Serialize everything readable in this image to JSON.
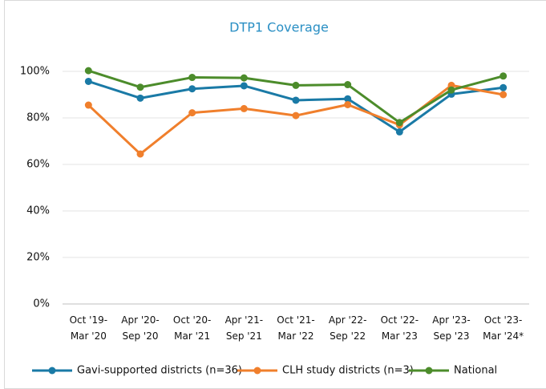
{
  "chart_data": {
    "type": "line",
    "title": "DTP1 Coverage",
    "categories": [
      "Oct '19-\nMar '20",
      "Apr '20-\nSep '20",
      "Oct '20-\nMar '21",
      "Apr '21-\nSep '21",
      "Oct '21-\nMar '22",
      "Apr '22-\nSep '22",
      "Oct '22-\nMar '23",
      "Apr '23-\nSep '23",
      "Oct '23-\nMar '24*"
    ],
    "series": [
      {
        "name": "Gavi-supported districts (n=36)",
        "color": "#1a7aa6",
        "values": [
          95.7,
          88.5,
          92.5,
          93.8,
          87.6,
          88.2,
          74,
          90.2,
          93
        ]
      },
      {
        "name": "CLH study districts (n=3)",
        "color": "#f07f2c",
        "values": [
          85.5,
          64.5,
          82.2,
          84,
          81,
          85.7,
          77,
          94,
          90
        ]
      },
      {
        "name": "National",
        "color": "#4c8c2b",
        "values": [
          100.3,
          93.2,
          97.4,
          97.2,
          94,
          94.3,
          78,
          92,
          98
        ]
      }
    ],
    "ylim": [
      0,
      110
    ],
    "yticks": [
      {
        "value": 0,
        "label": "0%"
      },
      {
        "value": 20,
        "label": "20%"
      },
      {
        "value": 40,
        "label": "40%"
      },
      {
        "value": 60,
        "label": "60%"
      },
      {
        "value": 80,
        "label": "80%"
      },
      {
        "value": 100,
        "label": "100%"
      }
    ],
    "grid": true,
    "legend": "bottom"
  }
}
